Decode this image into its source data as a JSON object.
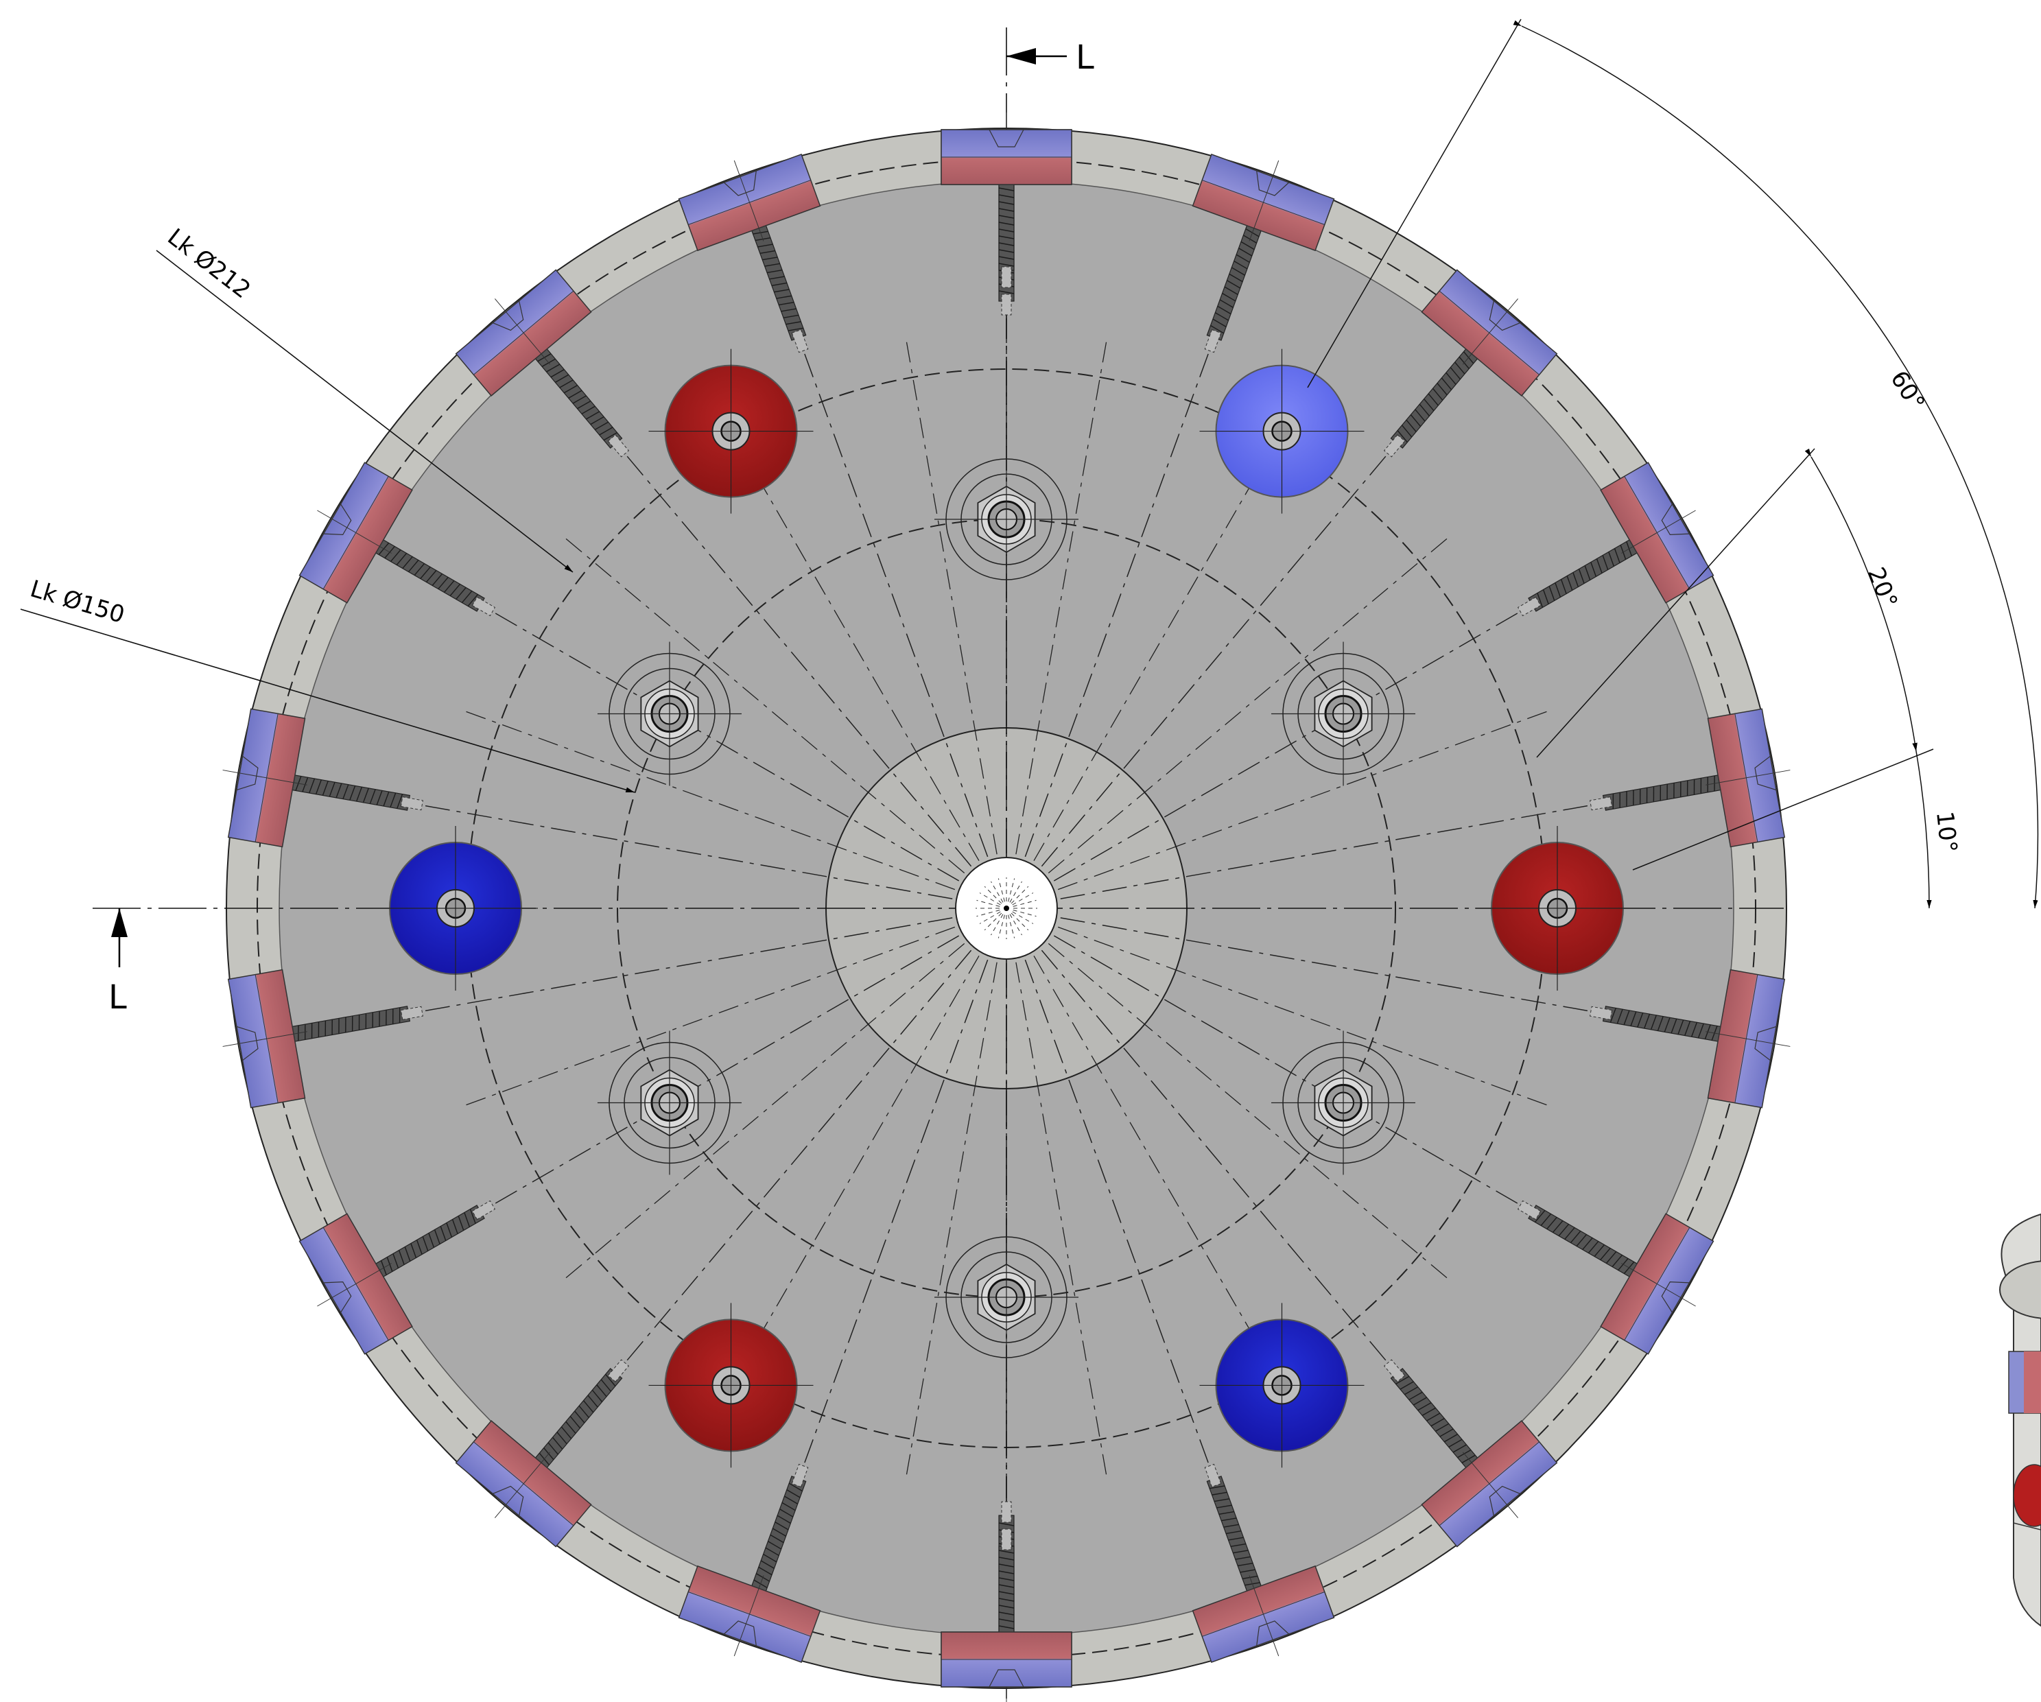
{
  "section": {
    "marker": "L"
  },
  "pitch_circles": [
    {
      "label": "Lk Ø212"
    },
    {
      "label": "Lk Ø150"
    }
  ],
  "angles": [
    {
      "label": "60°"
    },
    {
      "label": "20°"
    },
    {
      "label": "10°"
    }
  ],
  "colors": {
    "paper": "#ffffff",
    "rim": "#c4c4bf",
    "face": "#aaaaaa",
    "hub": "#b9b9b6",
    "bore": "#ffffff",
    "magnet_red": "#9c1616",
    "magnet_blue": "#1a1ac2",
    "magnet_light_blue": "#6470ef",
    "segment_red": "#c06e73",
    "segment_blue": "#7478c4",
    "line": "#111111"
  },
  "icons": {
    "magnet": "round-magnet-icon",
    "stud": "hex-nut-stud-icon",
    "segment": "edge-segment-screw-icon",
    "arrow": "section-arrow-icon"
  }
}
